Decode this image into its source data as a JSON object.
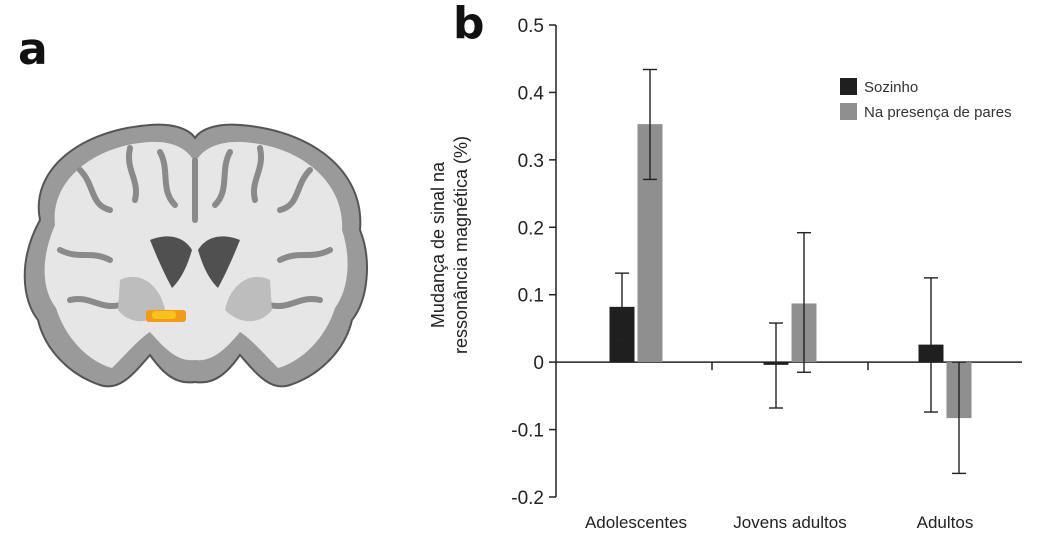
{
  "panels": {
    "a": "a",
    "b": "b"
  },
  "chart_data": {
    "type": "bar",
    "title": "",
    "categories": [
      "Adolescentes",
      "Jovens adultos",
      "Adultos"
    ],
    "series": [
      {
        "name": "Sozinho",
        "color": "#1f1f1f",
        "values": [
          0.082,
          -0.004,
          0.026
        ],
        "err_low": [
          0.05,
          0.064,
          0.1
        ],
        "err_high": [
          0.05,
          0.062,
          0.099
        ]
      },
      {
        "name": "Na presença de pares",
        "color": "#8f8f8f",
        "values": [
          0.353,
          0.087,
          -0.083
        ],
        "err_low": [
          0.082,
          0.102,
          0.082
        ],
        "err_high": [
          0.081,
          0.105,
          0.083
        ]
      }
    ],
    "ylabel_lines": [
      "Mudança de sinal na",
      "ressonância magnética (%)"
    ],
    "xlabel": "",
    "ylim": [
      -0.2,
      0.5
    ],
    "yticks": [
      "-0.2",
      "-0.1",
      "0",
      "0.1",
      "0.2",
      "0.3",
      "0.4",
      "0.5"
    ],
    "legend_position": "top-right",
    "grid": false
  }
}
